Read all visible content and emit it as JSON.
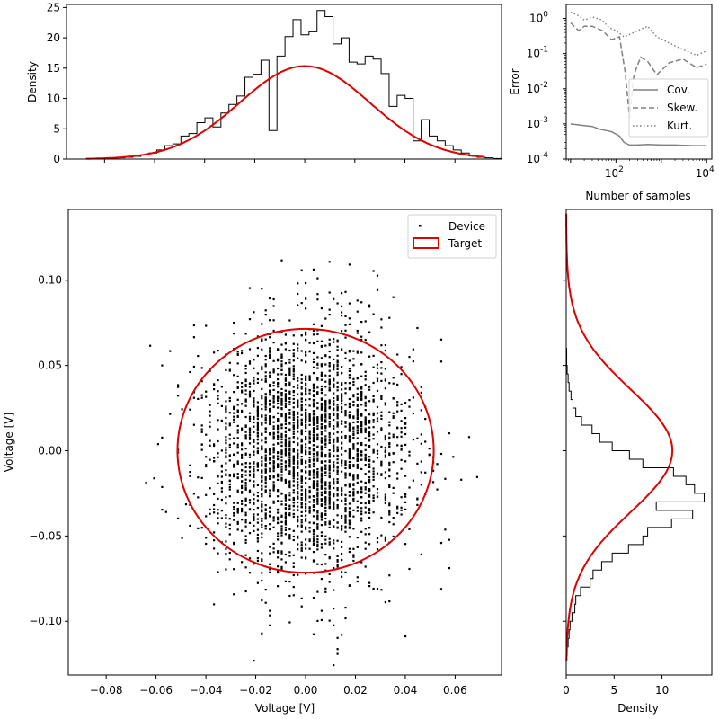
{
  "chart_data": [
    {
      "id": "top_hist",
      "type": "histogram",
      "ylabel": "Density",
      "xlim": [
        -0.0952,
        0.0786
      ],
      "ylim": [
        0,
        25.5
      ],
      "yticks": [
        0,
        5,
        10,
        15,
        20,
        25
      ],
      "ytick_labels": [
        "0",
        "5",
        "10",
        "15",
        "20",
        "25"
      ],
      "xticks": [
        -0.08,
        -0.06,
        -0.04,
        -0.02,
        0.0,
        0.02,
        0.04,
        0.06
      ],
      "bin_start": -0.0879,
      "bin_width": 0.0032,
      "densities": [
        0.0,
        0.05,
        0.05,
        0.1,
        0.2,
        0.3,
        0.45,
        0.7,
        1.0,
        1.5,
        2.2,
        2.5,
        3.8,
        4.2,
        6.0,
        6.8,
        5.3,
        7.6,
        9.0,
        10.4,
        13.5,
        14.0,
        16.3,
        4.7,
        17.0,
        20.2,
        23.0,
        20.5,
        21.0,
        24.5,
        23.5,
        19.0,
        20.0,
        16.0,
        15.7,
        17.0,
        16.5,
        14.1,
        8.7,
        10.5,
        10.0,
        3.0,
        6.5,
        3.8,
        3.0,
        2.2,
        1.5,
        1.0,
        0.5,
        0.3,
        0.2,
        0.1
      ],
      "target_curve": {
        "name": "Target",
        "color": "#e00000",
        "mean": 0.0,
        "std": 0.026,
        "x_range": [
          -0.0874,
          0.0715
        ]
      }
    },
    {
      "id": "error_plot",
      "type": "line",
      "xscale": "log",
      "yscale": "log",
      "xlabel": "Number of samples",
      "ylabel": "Error",
      "xlim": [
        8,
        13000
      ],
      "ylim": [
        0.0001,
        2.5
      ],
      "xtick_labels": [
        "10^2",
        "10^4"
      ],
      "ytick_labels": [
        "10^-4",
        "10^-3",
        "10^-2",
        "10^-1",
        "10^0"
      ],
      "legend": "lower-right",
      "series": [
        {
          "name": "Cov.",
          "style": "solid",
          "color": "#808080",
          "x": [
            10,
            20,
            30,
            45,
            60,
            80,
            120,
            150,
            200,
            300,
            500,
            1000,
            2000,
            5000,
            10000
          ],
          "y": [
            0.001,
            0.0009,
            0.00085,
            0.0007,
            0.00065,
            0.0006,
            0.00045,
            0.0003,
            0.00025,
            0.00025,
            0.00026,
            0.00025,
            0.00025,
            0.00024,
            0.00024
          ]
        },
        {
          "name": "Skew.",
          "style": "dashed",
          "color": "#808080",
          "x": [
            10,
            15,
            20,
            30,
            50,
            80,
            120,
            160,
            200,
            250,
            350,
            500,
            800,
            1500,
            3000,
            6000,
            10000
          ],
          "y": [
            0.75,
            0.45,
            0.6,
            0.6,
            0.45,
            0.25,
            0.3,
            0.03,
            0.0015,
            0.025,
            0.08,
            0.06,
            0.025,
            0.055,
            0.07,
            0.04,
            0.05
          ]
        },
        {
          "name": "Kurt.",
          "style": "dotted",
          "color": "#808080",
          "x": [
            10,
            15,
            20,
            30,
            50,
            70,
            100,
            150,
            200,
            300,
            500,
            800,
            1500,
            3000,
            6000,
            10000
          ],
          "y": [
            1.5,
            1.2,
            0.9,
            1.1,
            0.9,
            0.55,
            0.45,
            0.3,
            0.35,
            0.45,
            0.6,
            0.3,
            0.2,
            0.13,
            0.09,
            0.12
          ]
        }
      ]
    },
    {
      "id": "scatter",
      "type": "scatter",
      "xlabel": "Voltage [V]",
      "ylabel": "Voltage [V]",
      "xlim": [
        -0.0952,
        0.0786
      ],
      "ylim": [
        -0.1315,
        0.1415
      ],
      "xticks": [
        -0.08,
        -0.06,
        -0.04,
        -0.02,
        0.0,
        0.02,
        0.04,
        0.06
      ],
      "xtick_labels": [
        "−0.08",
        "−0.06",
        "−0.04",
        "−0.02",
        "0.00",
        "0.02",
        "0.04",
        "0.06"
      ],
      "yticks": [
        -0.1,
        -0.05,
        0.0,
        0.05,
        0.1
      ],
      "ytick_labels": [
        "−0.10",
        "−0.05",
        "0.00",
        "0.05",
        "0.10"
      ],
      "legend": "top-right",
      "series": [
        {
          "name": "Device",
          "color": "#000000",
          "n_points": 3000,
          "std_x": 0.02,
          "std_y": 0.036,
          "x_grid_step": 0.0016
        }
      ],
      "target_ellipse": {
        "name": "Target",
        "color": "#e00000",
        "center": [
          0.0,
          0.0
        ],
        "radius_x": 0.0514,
        "radius_y": 0.0715
      }
    },
    {
      "id": "right_hist",
      "type": "histogram",
      "orientation": "horizontal",
      "xlabel": "Density",
      "xlim": [
        0,
        15.2
      ],
      "xticks": [
        0,
        5,
        10
      ],
      "xtick_labels": [
        "0",
        "5",
        "10"
      ],
      "ylim": [
        -0.1315,
        0.1415
      ],
      "yticks": [
        -0.1,
        -0.05,
        0.0,
        0.05,
        0.1
      ],
      "bin_start": -0.12,
      "bin_width": 0.005,
      "densities": [
        0.1,
        0.2,
        0.3,
        0.4,
        0.6,
        0.9,
        1.0,
        1.5,
        2.5,
        2.8,
        3.7,
        4.8,
        6.5,
        8.0,
        8.5,
        11.0,
        13.2,
        9.4,
        14.4,
        13.4,
        12.5,
        11.2,
        8.0,
        6.6,
        4.8,
        3.5,
        2.7,
        1.6,
        1.0,
        0.7,
        0.5,
        0.3,
        0.2,
        0.1,
        0.05,
        0.05
      ],
      "target_curve": {
        "name": "Target",
        "color": "#e00000",
        "mean": 0.0,
        "std": 0.036,
        "y_range": [
          -0.123,
          0.139
        ]
      }
    }
  ]
}
